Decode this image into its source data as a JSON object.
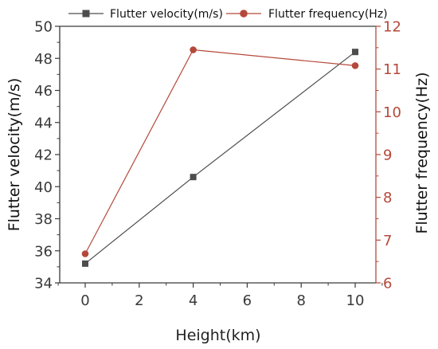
{
  "chart_data": {
    "type": "line",
    "x": [
      0,
      4,
      10
    ],
    "x_tick_labels": [
      "0",
      "2",
      "4",
      "6",
      "8",
      "10"
    ],
    "xlabel": "Height(km)",
    "ylabel_left": "Flutter velocity(m/s)",
    "ylabel_right": "Flutter frequency(Hz)",
    "ylim_left": [
      34,
      50
    ],
    "ylim_right": [
      6,
      12
    ],
    "y_left_ticks": [
      "34",
      "36",
      "38",
      "40",
      "42",
      "44",
      "46",
      "48",
      "50"
    ],
    "y_right_ticks": [
      "6",
      "7",
      "8",
      "9",
      "10",
      "11",
      "12"
    ],
    "grid": false,
    "legend_position": "top",
    "series": [
      {
        "name": "Flutter velocity(m/s)",
        "axis": "left",
        "marker": "square",
        "color": "#4d4d4d",
        "values": [
          35.2,
          40.6,
          48.4
        ]
      },
      {
        "name": "Flutter frequency(Hz)",
        "axis": "right",
        "marker": "circle",
        "color": "#b5483a",
        "values": [
          6.68,
          11.45,
          11.08
        ]
      }
    ],
    "colors": {
      "left_axis": "#3a3a3a",
      "right_axis": "#b5483a"
    }
  }
}
